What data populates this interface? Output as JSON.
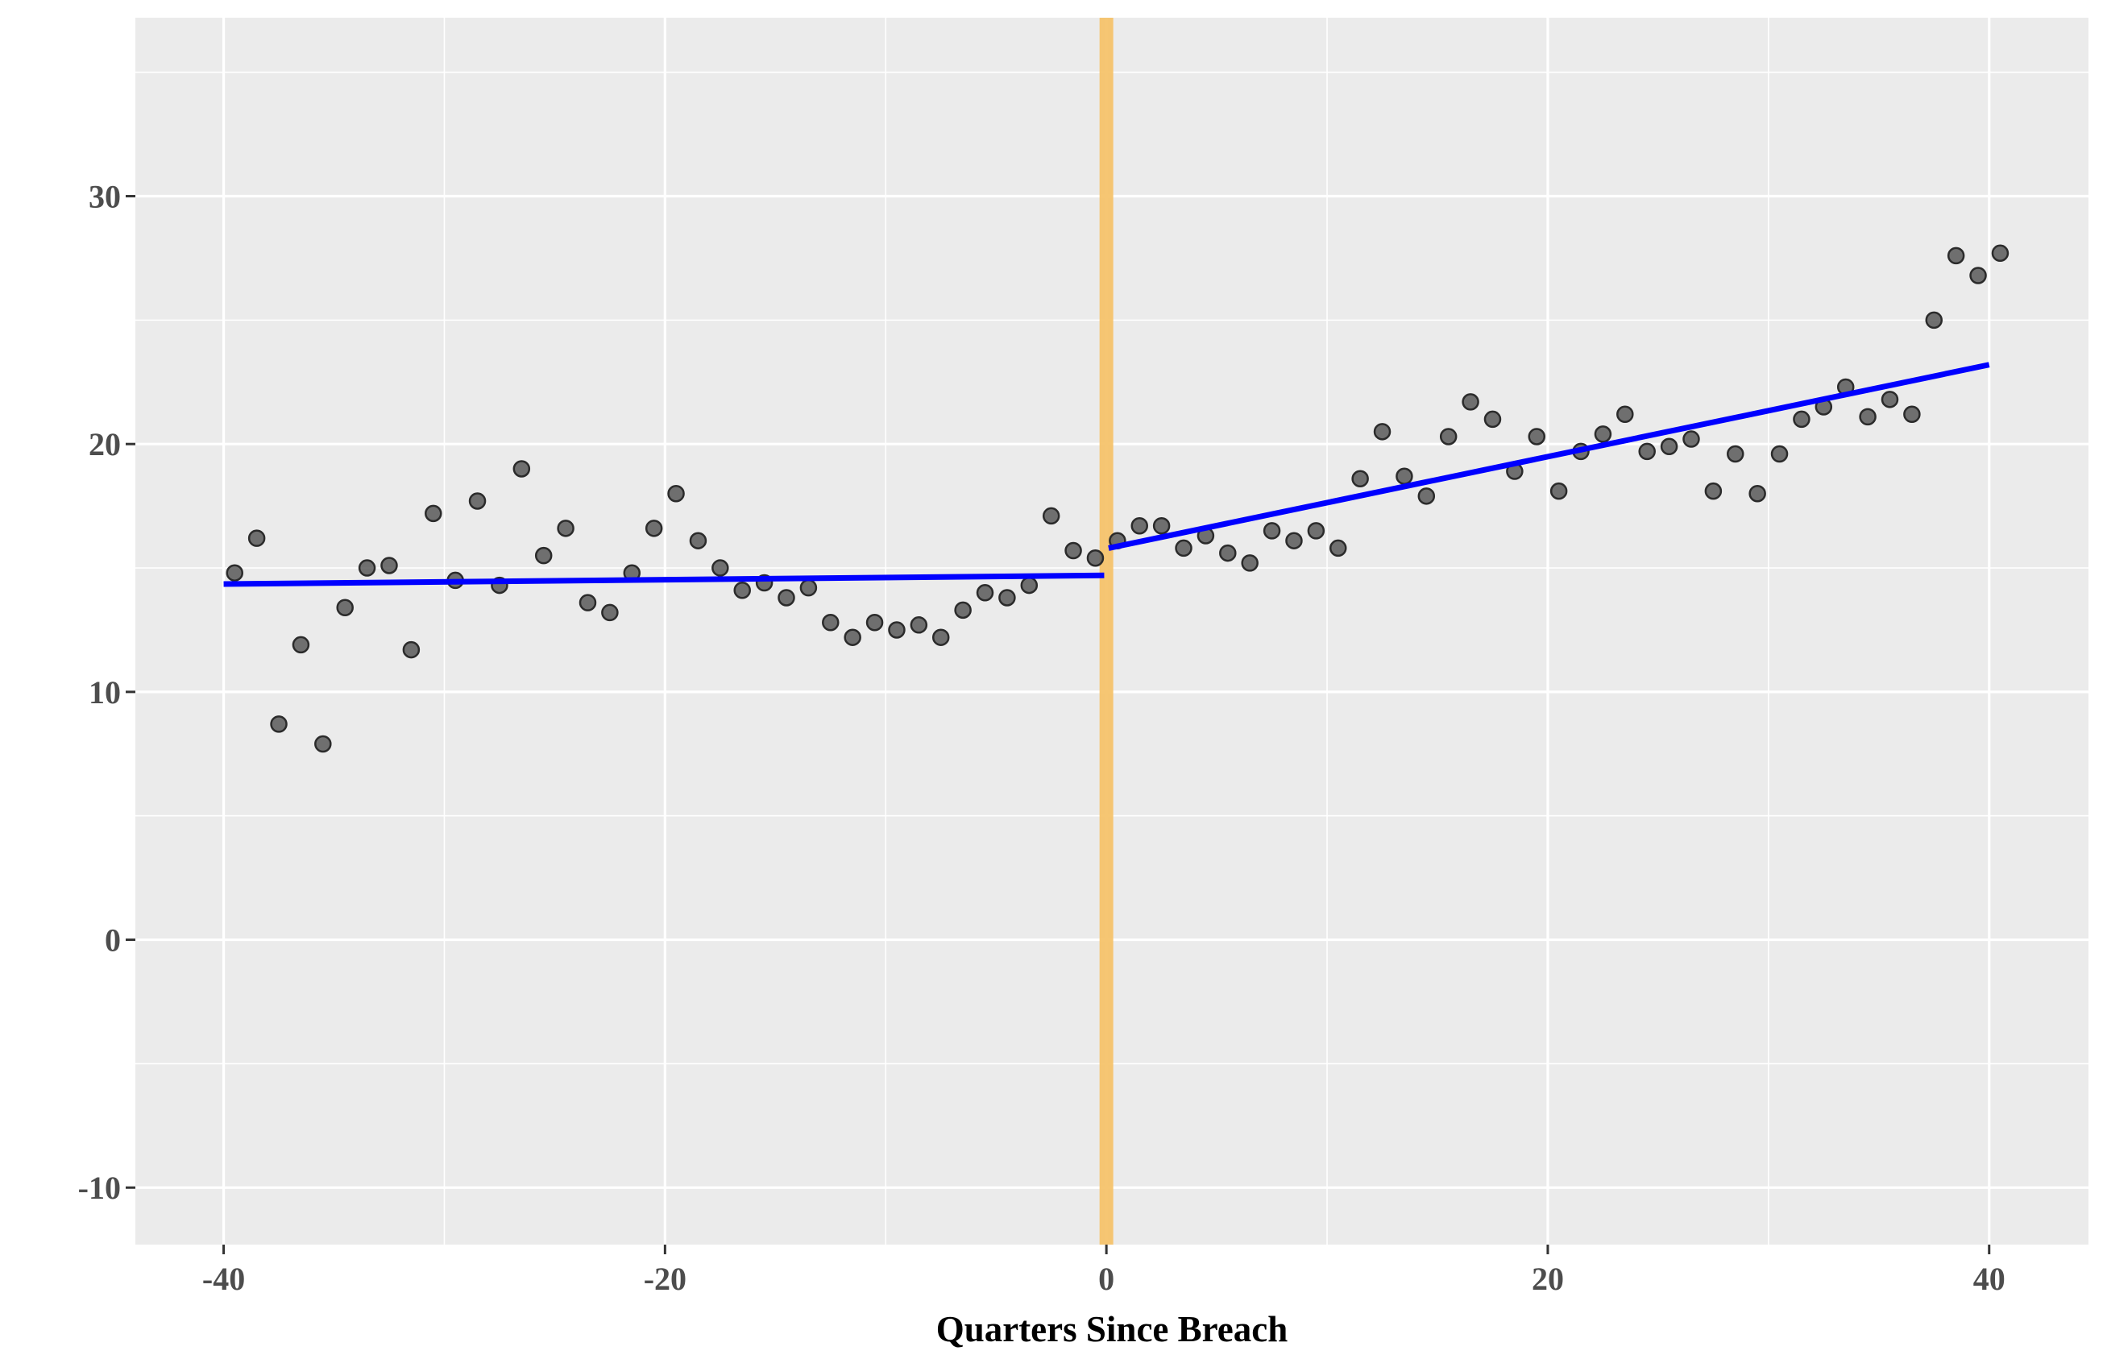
{
  "chart_data": {
    "type": "scatter",
    "xlabel": "Quarters Since Breach",
    "ylabel": "",
    "xlim": [
      -44,
      44.5
    ],
    "ylim": [
      -12.3,
      37.2
    ],
    "x_ticks": [
      -40,
      -20,
      0,
      20,
      40
    ],
    "x_tick_labels": [
      "-40",
      "-20",
      "0",
      "20",
      "40"
    ],
    "y_ticks": [
      -10,
      0,
      10,
      20,
      30
    ],
    "y_tick_labels": [
      "-10",
      "0",
      "10",
      "20",
      "30"
    ],
    "grid": true,
    "breach_marker_x": 0,
    "series": [
      {
        "points": [
          [
            -39.5,
            14.8
          ],
          [
            -38.5,
            16.2
          ],
          [
            -37.5,
            8.7
          ],
          [
            -36.5,
            11.9
          ],
          [
            -35.5,
            7.9
          ],
          [
            -34.5,
            13.4
          ],
          [
            -33.5,
            15.0
          ],
          [
            -32.5,
            15.1
          ],
          [
            -31.5,
            11.7
          ],
          [
            -30.5,
            17.2
          ],
          [
            -29.5,
            14.5
          ],
          [
            -28.5,
            17.7
          ],
          [
            -27.5,
            14.3
          ],
          [
            -26.5,
            19.0
          ],
          [
            -25.5,
            15.5
          ],
          [
            -24.5,
            16.6
          ],
          [
            -23.5,
            13.6
          ],
          [
            -22.5,
            13.2
          ],
          [
            -21.5,
            14.8
          ],
          [
            -20.5,
            16.6
          ],
          [
            -19.5,
            18.0
          ],
          [
            -18.5,
            16.1
          ],
          [
            -17.5,
            15.0
          ],
          [
            -16.5,
            14.1
          ],
          [
            -15.5,
            14.4
          ],
          [
            -14.5,
            13.8
          ],
          [
            -13.5,
            14.2
          ],
          [
            -12.5,
            12.8
          ],
          [
            -11.5,
            12.2
          ],
          [
            -10.5,
            12.8
          ],
          [
            -9.5,
            12.5
          ],
          [
            -8.5,
            12.7
          ],
          [
            -7.5,
            12.2
          ],
          [
            -6.5,
            13.3
          ],
          [
            -5.5,
            14.0
          ],
          [
            -4.5,
            13.8
          ],
          [
            -3.5,
            14.3
          ],
          [
            -2.5,
            17.1
          ],
          [
            -1.5,
            15.7
          ],
          [
            -0.5,
            15.4
          ],
          [
            0.5,
            16.1
          ],
          [
            1.5,
            16.7
          ],
          [
            2.5,
            16.7
          ],
          [
            3.5,
            15.8
          ],
          [
            4.5,
            16.3
          ],
          [
            5.5,
            15.6
          ],
          [
            6.5,
            15.2
          ],
          [
            7.5,
            16.5
          ],
          [
            8.5,
            16.1
          ],
          [
            9.5,
            16.5
          ],
          [
            10.5,
            15.8
          ],
          [
            11.5,
            18.6
          ],
          [
            12.5,
            20.5
          ],
          [
            13.5,
            18.7
          ],
          [
            14.5,
            17.9
          ],
          [
            15.5,
            20.3
          ],
          [
            16.5,
            21.7
          ],
          [
            17.5,
            21.0
          ],
          [
            18.5,
            18.9
          ],
          [
            19.5,
            20.3
          ],
          [
            20.5,
            18.1
          ],
          [
            21.5,
            19.7
          ],
          [
            22.5,
            20.4
          ],
          [
            23.5,
            21.2
          ],
          [
            24.5,
            19.7
          ],
          [
            25.5,
            19.9
          ],
          [
            26.5,
            20.2
          ],
          [
            27.5,
            18.1
          ],
          [
            28.5,
            19.6
          ],
          [
            29.5,
            18.0
          ],
          [
            30.5,
            19.6
          ],
          [
            31.5,
            21.0
          ],
          [
            32.5,
            21.5
          ],
          [
            33.5,
            22.3
          ],
          [
            34.5,
            21.1
          ],
          [
            35.5,
            21.8
          ],
          [
            36.5,
            21.2
          ],
          [
            37.5,
            25.0
          ],
          [
            38.5,
            27.6
          ],
          [
            39.5,
            26.8
          ],
          [
            40.5,
            27.7
          ]
        ],
        "color": "#595959"
      }
    ],
    "fit_lines": [
      {
        "x": [
          -40,
          -0.1
        ],
        "y": [
          14.35,
          14.7
        ],
        "color": "#0000ff"
      },
      {
        "x": [
          0.1,
          40
        ],
        "y": [
          15.8,
          23.2
        ],
        "color": "#0000ff"
      }
    ],
    "breach_color": "#f5c36b",
    "panel_color": "#ebebeb",
    "grid_color": "#ffffff"
  }
}
